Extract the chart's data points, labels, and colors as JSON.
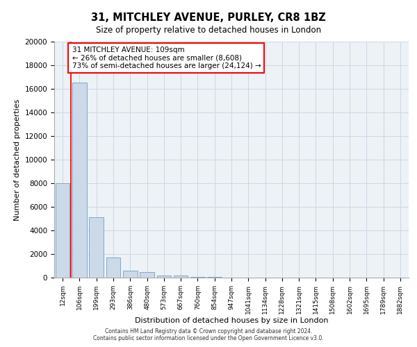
{
  "title_line1": "31, MITCHLEY AVENUE, PURLEY, CR8 1BZ",
  "title_line2": "Size of property relative to detached houses in London",
  "xlabel": "Distribution of detached houses by size in London",
  "ylabel": "Number of detached properties",
  "categories": [
    "12sqm",
    "106sqm",
    "199sqm",
    "293sqm",
    "386sqm",
    "480sqm",
    "573sqm",
    "667sqm",
    "760sqm",
    "854sqm",
    "947sqm",
    "1041sqm",
    "1134sqm",
    "1228sqm",
    "1321sqm",
    "1415sqm",
    "1508sqm",
    "1602sqm",
    "1695sqm",
    "1789sqm",
    "1882sqm"
  ],
  "values": [
    8000,
    16500,
    5100,
    1700,
    600,
    450,
    200,
    150,
    80,
    30,
    0,
    0,
    0,
    0,
    0,
    0,
    0,
    0,
    0,
    0,
    0
  ],
  "bar_color": "#ccd9e8",
  "bar_edge_color": "#7aaac8",
  "annotation_text": "31 MITCHLEY AVENUE: 109sqm\n← 26% of detached houses are smaller (8,608)\n73% of semi-detached houses are larger (24,124) →",
  "ylim": [
    0,
    20000
  ],
  "yticks": [
    0,
    2000,
    4000,
    6000,
    8000,
    10000,
    12000,
    14000,
    16000,
    18000,
    20000
  ],
  "grid_color": "#ccd6e4",
  "bg_color": "#edf2f7",
  "footer_line1": "Contains HM Land Registry data © Crown copyright and database right 2024.",
  "footer_line2": "Contains public sector information licensed under the Open Government Licence v3.0."
}
